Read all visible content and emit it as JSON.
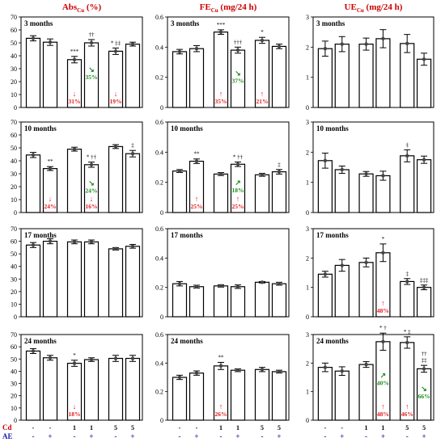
{
  "chart_data": {
    "type": "bar",
    "layout": "4x3 panel grid",
    "colors": {
      "bar_fill": "#ffffff",
      "bar_stroke": "#000000",
      "increase_note": "#e8191b",
      "decrease_note": "#1a8a1a",
      "axis_label": "#cc0000",
      "ae_label": "#1a1aaa"
    },
    "row_labels": [
      "3 months",
      "10 months",
      "17 months",
      "24 months"
    ],
    "x_axis": {
      "cd_label": "Cd",
      "ae_label": "AE",
      "cd_values": [
        "-",
        "-",
        "1",
        "1",
        "5",
        "5"
      ],
      "ae_values": [
        "-",
        "+",
        "-",
        "+",
        "-",
        "+"
      ]
    },
    "columns": [
      {
        "title_main": "Abs",
        "title_sub": "Cu",
        "title_unit": " (%)",
        "ylim": [
          0,
          70
        ],
        "yticks": [
          0,
          10,
          20,
          30,
          40,
          50,
          60,
          70
        ],
        "panels": [
          {
            "values": [
              53.5,
              50.5,
              37,
              50,
              43.5,
              49
            ],
            "errors": [
              2,
              2.5,
              2.5,
              2.5,
              2.5,
              1.5
            ],
            "sig": [
              "",
              "",
              "***",
              "††",
              "* ‡‡",
              ""
            ],
            "notes": [
              {
                "bar": 2,
                "arrow": "↓",
                "text": "31%",
                "color": "red",
                "pos": "low"
              },
              {
                "bar": 3,
                "arrow": "↘",
                "text": "35%",
                "color": "green",
                "pos": "mid"
              },
              {
                "bar": 4,
                "arrow": "↓",
                "text": "19%",
                "color": "red",
                "pos": "low"
              }
            ]
          },
          {
            "values": [
              44.5,
              34,
              49,
              37,
              51,
              45.5
            ],
            "errors": [
              2,
              1.5,
              1.5,
              2,
              1.5,
              2.5
            ],
            "sig": [
              "",
              "**",
              "",
              "* ††",
              "",
              "‡"
            ],
            "notes": [
              {
                "bar": 1,
                "arrow": "↓",
                "text": "24%",
                "color": "red",
                "pos": "low"
              },
              {
                "bar": 3,
                "arrow": "↘",
                "text": "24%",
                "color": "green",
                "pos": "mid"
              },
              {
                "bar": 3,
                "arrow": "↓",
                "text": "16%",
                "color": "red",
                "pos": "low"
              }
            ]
          },
          {
            "values": [
              57,
              60,
              59.5,
              59.5,
              54,
              56
            ],
            "errors": [
              2,
              2,
              1.5,
              1.5,
              1,
              1.5
            ],
            "sig": [
              "",
              "",
              "",
              "",
              "",
              ""
            ],
            "notes": []
          },
          {
            "values": [
              56.5,
              51,
              46.5,
              49.5,
              50.5,
              50.5
            ],
            "errors": [
              2,
              2,
              2.5,
              1.5,
              2.5,
              2.5
            ],
            "sig": [
              "",
              "",
              "*",
              "",
              "",
              ""
            ],
            "notes": [
              {
                "bar": 2,
                "arrow": "↓",
                "text": "18%",
                "color": "red",
                "pos": "low"
              }
            ]
          }
        ]
      },
      {
        "title_main": "FE",
        "title_sub": "Cu",
        "title_unit": " (mg/24 h)",
        "ylim": [
          0,
          0.6
        ],
        "yticks": [
          0,
          0.2,
          0.4,
          0.6
        ],
        "ytick_labels": [
          "0",
          "0.2",
          "0.4",
          "0.6"
        ],
        "panels": [
          {
            "values": [
              0.37,
              0.39,
              0.5,
              0.38,
              0.445,
              0.405
            ],
            "errors": [
              0.015,
              0.02,
              0.015,
              0.02,
              0.02,
              0.015
            ],
            "sig": [
              "",
              "",
              "***",
              "†††",
              "*",
              ""
            ],
            "notes": [
              {
                "bar": 2,
                "arrow": "↑",
                "text": "35%",
                "color": "red",
                "pos": "low"
              },
              {
                "bar": 3,
                "arrow": "↘",
                "text": "37%",
                "color": "green",
                "pos": "mid"
              },
              {
                "bar": 4,
                "arrow": "↑",
                "text": "21%",
                "color": "red",
                "pos": "low"
              }
            ]
          },
          {
            "values": [
              0.275,
              0.34,
              0.255,
              0.32,
              0.25,
              0.27
            ],
            "errors": [
              0.01,
              0.015,
              0.01,
              0.015,
              0.01,
              0.015
            ],
            "sig": [
              "",
              "**",
              "",
              "* ††",
              "",
              "‡"
            ],
            "notes": [
              {
                "bar": 1,
                "arrow": "↑",
                "text": "25%",
                "color": "red",
                "pos": "low"
              },
              {
                "bar": 3,
                "arrow": "↗",
                "text": "18%",
                "color": "green",
                "pos": "mid"
              },
              {
                "bar": 3,
                "arrow": "↑",
                "text": "25%",
                "color": "red",
                "pos": "low"
              }
            ]
          },
          {
            "values": [
              0.225,
              0.205,
              0.21,
              0.205,
              0.235,
              0.225
            ],
            "errors": [
              0.015,
              0.01,
              0.008,
              0.012,
              0.005,
              0.01
            ],
            "sig": [
              "",
              "",
              "",
              "",
              "",
              ""
            ],
            "notes": []
          },
          {
            "values": [
              0.3,
              0.33,
              0.38,
              0.35,
              0.355,
              0.34
            ],
            "errors": [
              0.015,
              0.015,
              0.025,
              0.01,
              0.015,
              0.01
            ],
            "sig": [
              "",
              "",
              "**",
              "",
              "",
              ""
            ],
            "notes": [
              {
                "bar": 2,
                "arrow": "↑",
                "text": "26%",
                "color": "red",
                "pos": "low"
              }
            ]
          }
        ]
      },
      {
        "title_main": "UE",
        "title_sub": "Cu",
        "title_unit": " (mg/24 h)",
        "ylim": [
          0,
          3
        ],
        "yticks": [
          0,
          1,
          2,
          3
        ],
        "panels": [
          {
            "values": [
              1.95,
              2.1,
              2.1,
              2.28,
              2.12,
              1.6
            ],
            "errors": [
              0.25,
              0.25,
              0.2,
              0.3,
              0.3,
              0.2
            ],
            "sig": [
              "",
              "",
              "",
              "",
              "",
              ""
            ],
            "notes": []
          },
          {
            "values": [
              1.72,
              1.42,
              1.28,
              1.22,
              1.88,
              1.75
            ],
            "errors": [
              0.25,
              0.12,
              0.08,
              0.15,
              0.2,
              0.12
            ],
            "sig": [
              "",
              "",
              "",
              "",
              "‡",
              ""
            ],
            "notes": []
          },
          {
            "values": [
              1.45,
              1.75,
              1.85,
              2.18,
              1.2,
              1.0
            ],
            "errors": [
              0.1,
              0.2,
              0.15,
              0.3,
              0.1,
              0.08
            ],
            "sig": [
              "",
              "",
              "",
              "*",
              "‡",
              "‡‡‡"
            ],
            "notes": [
              {
                "bar": 3,
                "arrow": "↑",
                "text": "48%",
                "color": "red",
                "pos": "low"
              }
            ]
          },
          {
            "values": [
              1.85,
              1.72,
              1.95,
              2.75,
              2.72,
              1.8
            ],
            "errors": [
              0.15,
              0.15,
              0.1,
              0.3,
              0.2,
              0.12
            ],
            "sig": [
              "",
              "",
              "",
              "* †",
              "* ‡",
              "††\n‡‡"
            ],
            "notes": [
              {
                "bar": 3,
                "arrow": "↗",
                "text": "40%",
                "color": "green",
                "pos": "mid"
              },
              {
                "bar": 3,
                "arrow": "↑",
                "text": "48%",
                "color": "red",
                "pos": "low"
              },
              {
                "bar": 4,
                "arrow": "↑",
                "text": "46%",
                "color": "red",
                "pos": "low"
              },
              {
                "bar": 5,
                "arrow": "↘",
                "text": "66%",
                "color": "green",
                "pos": "mid"
              }
            ]
          }
        ]
      }
    ]
  }
}
